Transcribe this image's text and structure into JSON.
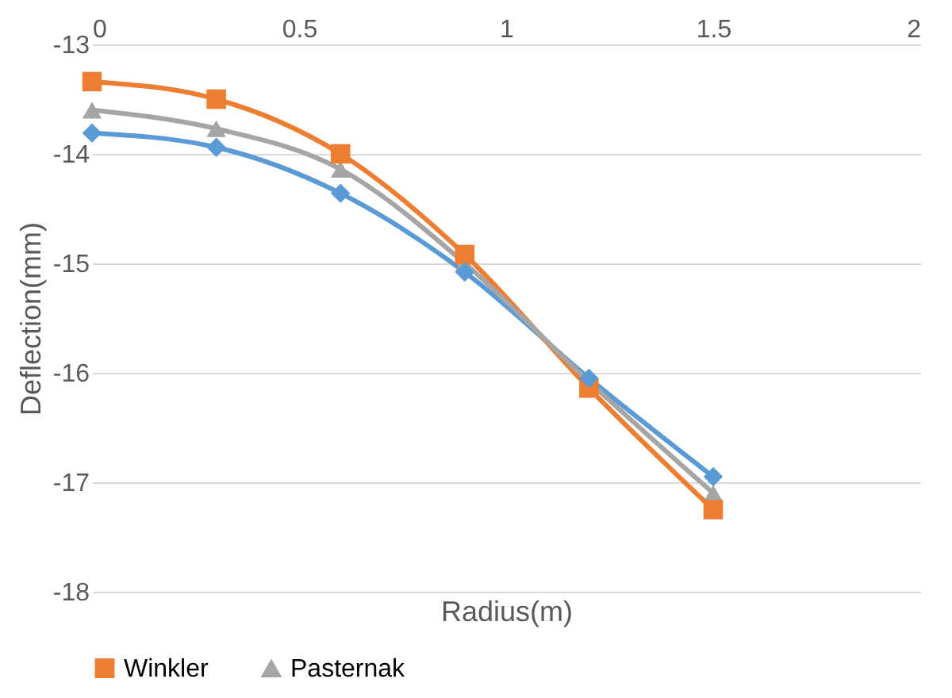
{
  "chart_data": {
    "type": "line",
    "xlabel": "Radius(m)",
    "ylabel": "Deflection(mm)",
    "x": [
      0,
      0.3,
      0.6,
      0.9,
      1.2,
      1.5
    ],
    "series": [
      {
        "color": "#5b9bd5",
        "marker": "diamond",
        "values": [
          -13.81,
          -13.94,
          -14.36,
          -15.08,
          -16.05,
          -16.95
        ]
      },
      {
        "name": "Winkler",
        "color": "#ed7d31",
        "marker": "square",
        "values": [
          -13.34,
          -13.5,
          -14.0,
          -14.92,
          -16.14,
          -17.25
        ]
      },
      {
        "name": "Pasternak",
        "color": "#a5a5a5",
        "marker": "triangle",
        "values": [
          -13.6,
          -13.77,
          -14.14,
          -15.0,
          -16.08,
          -17.1
        ]
      }
    ],
    "xlim": [
      0,
      2
    ],
    "xticks": [
      0,
      0.5,
      1,
      1.5,
      2
    ],
    "ylim": [
      -18,
      -13
    ],
    "yticks": [
      -13,
      -14,
      -15,
      -16,
      -17,
      -18
    ],
    "grid": "y",
    "legend": "bottom"
  }
}
